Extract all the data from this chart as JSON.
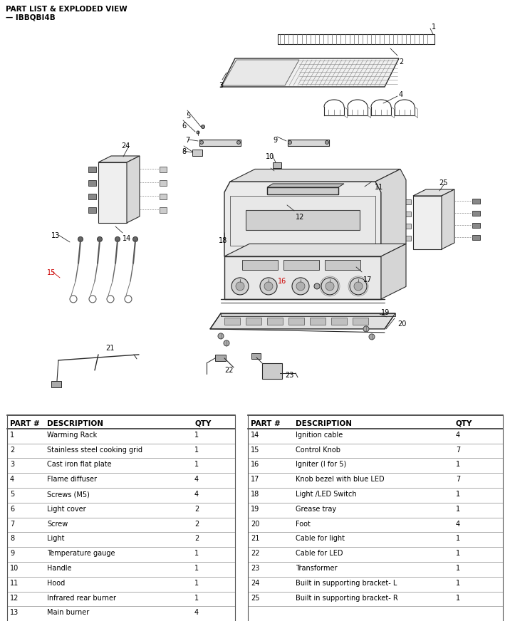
{
  "title_line1": "PART LIST & EXPLODED VIEW",
  "title_line2": "— IBBQBI4B",
  "bg_color": "#ffffff",
  "parts_left": [
    {
      "num": "1",
      "desc": "Warming Rack",
      "qty": "1"
    },
    {
      "num": "2",
      "desc": "Stainless steel cooking grid",
      "qty": "1"
    },
    {
      "num": "3",
      "desc": "Cast iron flat plate",
      "qty": "1"
    },
    {
      "num": "4",
      "desc": "Flame diffuser",
      "qty": "4"
    },
    {
      "num": "5",
      "desc": "Screws (M5)",
      "qty": "4"
    },
    {
      "num": "6",
      "desc": "Light cover",
      "qty": "2"
    },
    {
      "num": "7",
      "desc": "Screw",
      "qty": "2"
    },
    {
      "num": "8",
      "desc": "Light",
      "qty": "2"
    },
    {
      "num": "9",
      "desc": "Temperature gauge",
      "qty": "1"
    },
    {
      "num": "10",
      "desc": "Handle",
      "qty": "1"
    },
    {
      "num": "11",
      "desc": "Hood",
      "qty": "1"
    },
    {
      "num": "12",
      "desc": "Infrared rear burner",
      "qty": "1"
    },
    {
      "num": "13",
      "desc": "Main burner",
      "qty": "4"
    }
  ],
  "parts_right": [
    {
      "num": "14",
      "desc": "Ignition cable",
      "qty": "4"
    },
    {
      "num": "15",
      "desc": "Control Knob",
      "qty": "7"
    },
    {
      "num": "16",
      "desc": "Igniter (I for 5)",
      "qty": "1"
    },
    {
      "num": "17",
      "desc": "Knob bezel with blue LED",
      "qty": "7"
    },
    {
      "num": "18",
      "desc": "Light /LED Switch",
      "qty": "1"
    },
    {
      "num": "19",
      "desc": "Grease tray",
      "qty": "1"
    },
    {
      "num": "20",
      "desc": "Foot",
      "qty": "4"
    },
    {
      "num": "21",
      "desc": "Cable for light",
      "qty": "1"
    },
    {
      "num": "22",
      "desc": "Cable for LED",
      "qty": "1"
    },
    {
      "num": "23",
      "desc": "Transformer",
      "qty": "1"
    },
    {
      "num": "24",
      "desc": "Built in supporting bracket- L",
      "qty": "1"
    },
    {
      "num": "25",
      "desc": "Built in supporting bracket- R",
      "qty": "1"
    }
  ],
  "col_headers": [
    "PART #",
    "DESCRIPTION",
    "QTY"
  ],
  "fig_width": 7.16,
  "fig_height": 8.72,
  "dpi": 100
}
